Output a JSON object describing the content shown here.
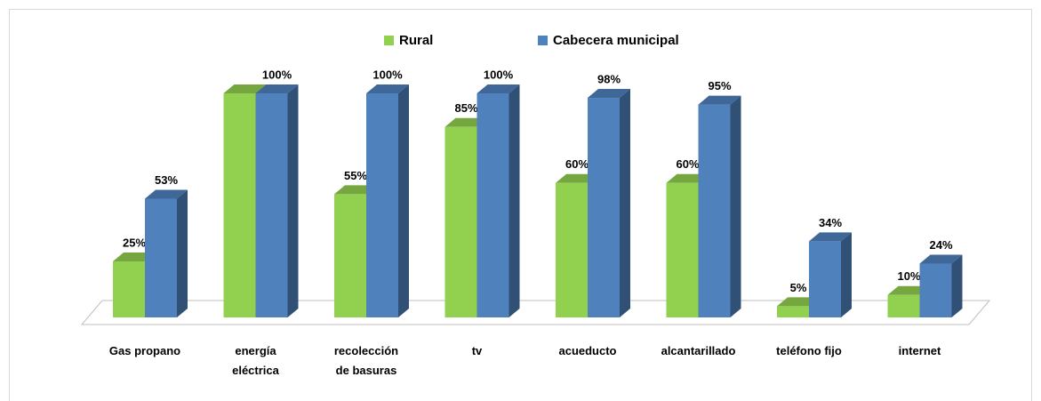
{
  "chart_data": {
    "type": "bar3d",
    "categories": [
      "Gas propano",
      "energía eléctrica",
      "recolección de basuras",
      "tv",
      "acueducto",
      "alcantarillado",
      "teléfono fijo",
      "internet"
    ],
    "series": [
      {
        "name": "Rural",
        "color": "#92d050",
        "values": [
          25,
          100,
          55,
          85,
          60,
          60,
          5,
          10
        ],
        "value_labels": [
          "25%",
          null,
          "55%",
          "85%",
          "60%",
          "60%",
          "5%",
          "10%"
        ]
      },
      {
        "name": "Cabecera municipal",
        "color": "#4f81bd",
        "values": [
          53,
          100,
          100,
          100,
          98,
          95,
          34,
          24
        ],
        "value_labels": [
          "53%",
          "100%",
          "100%",
          "100%",
          "98%",
          "95%",
          "34%",
          "24%"
        ]
      }
    ],
    "ylim": [
      0,
      100
    ]
  }
}
